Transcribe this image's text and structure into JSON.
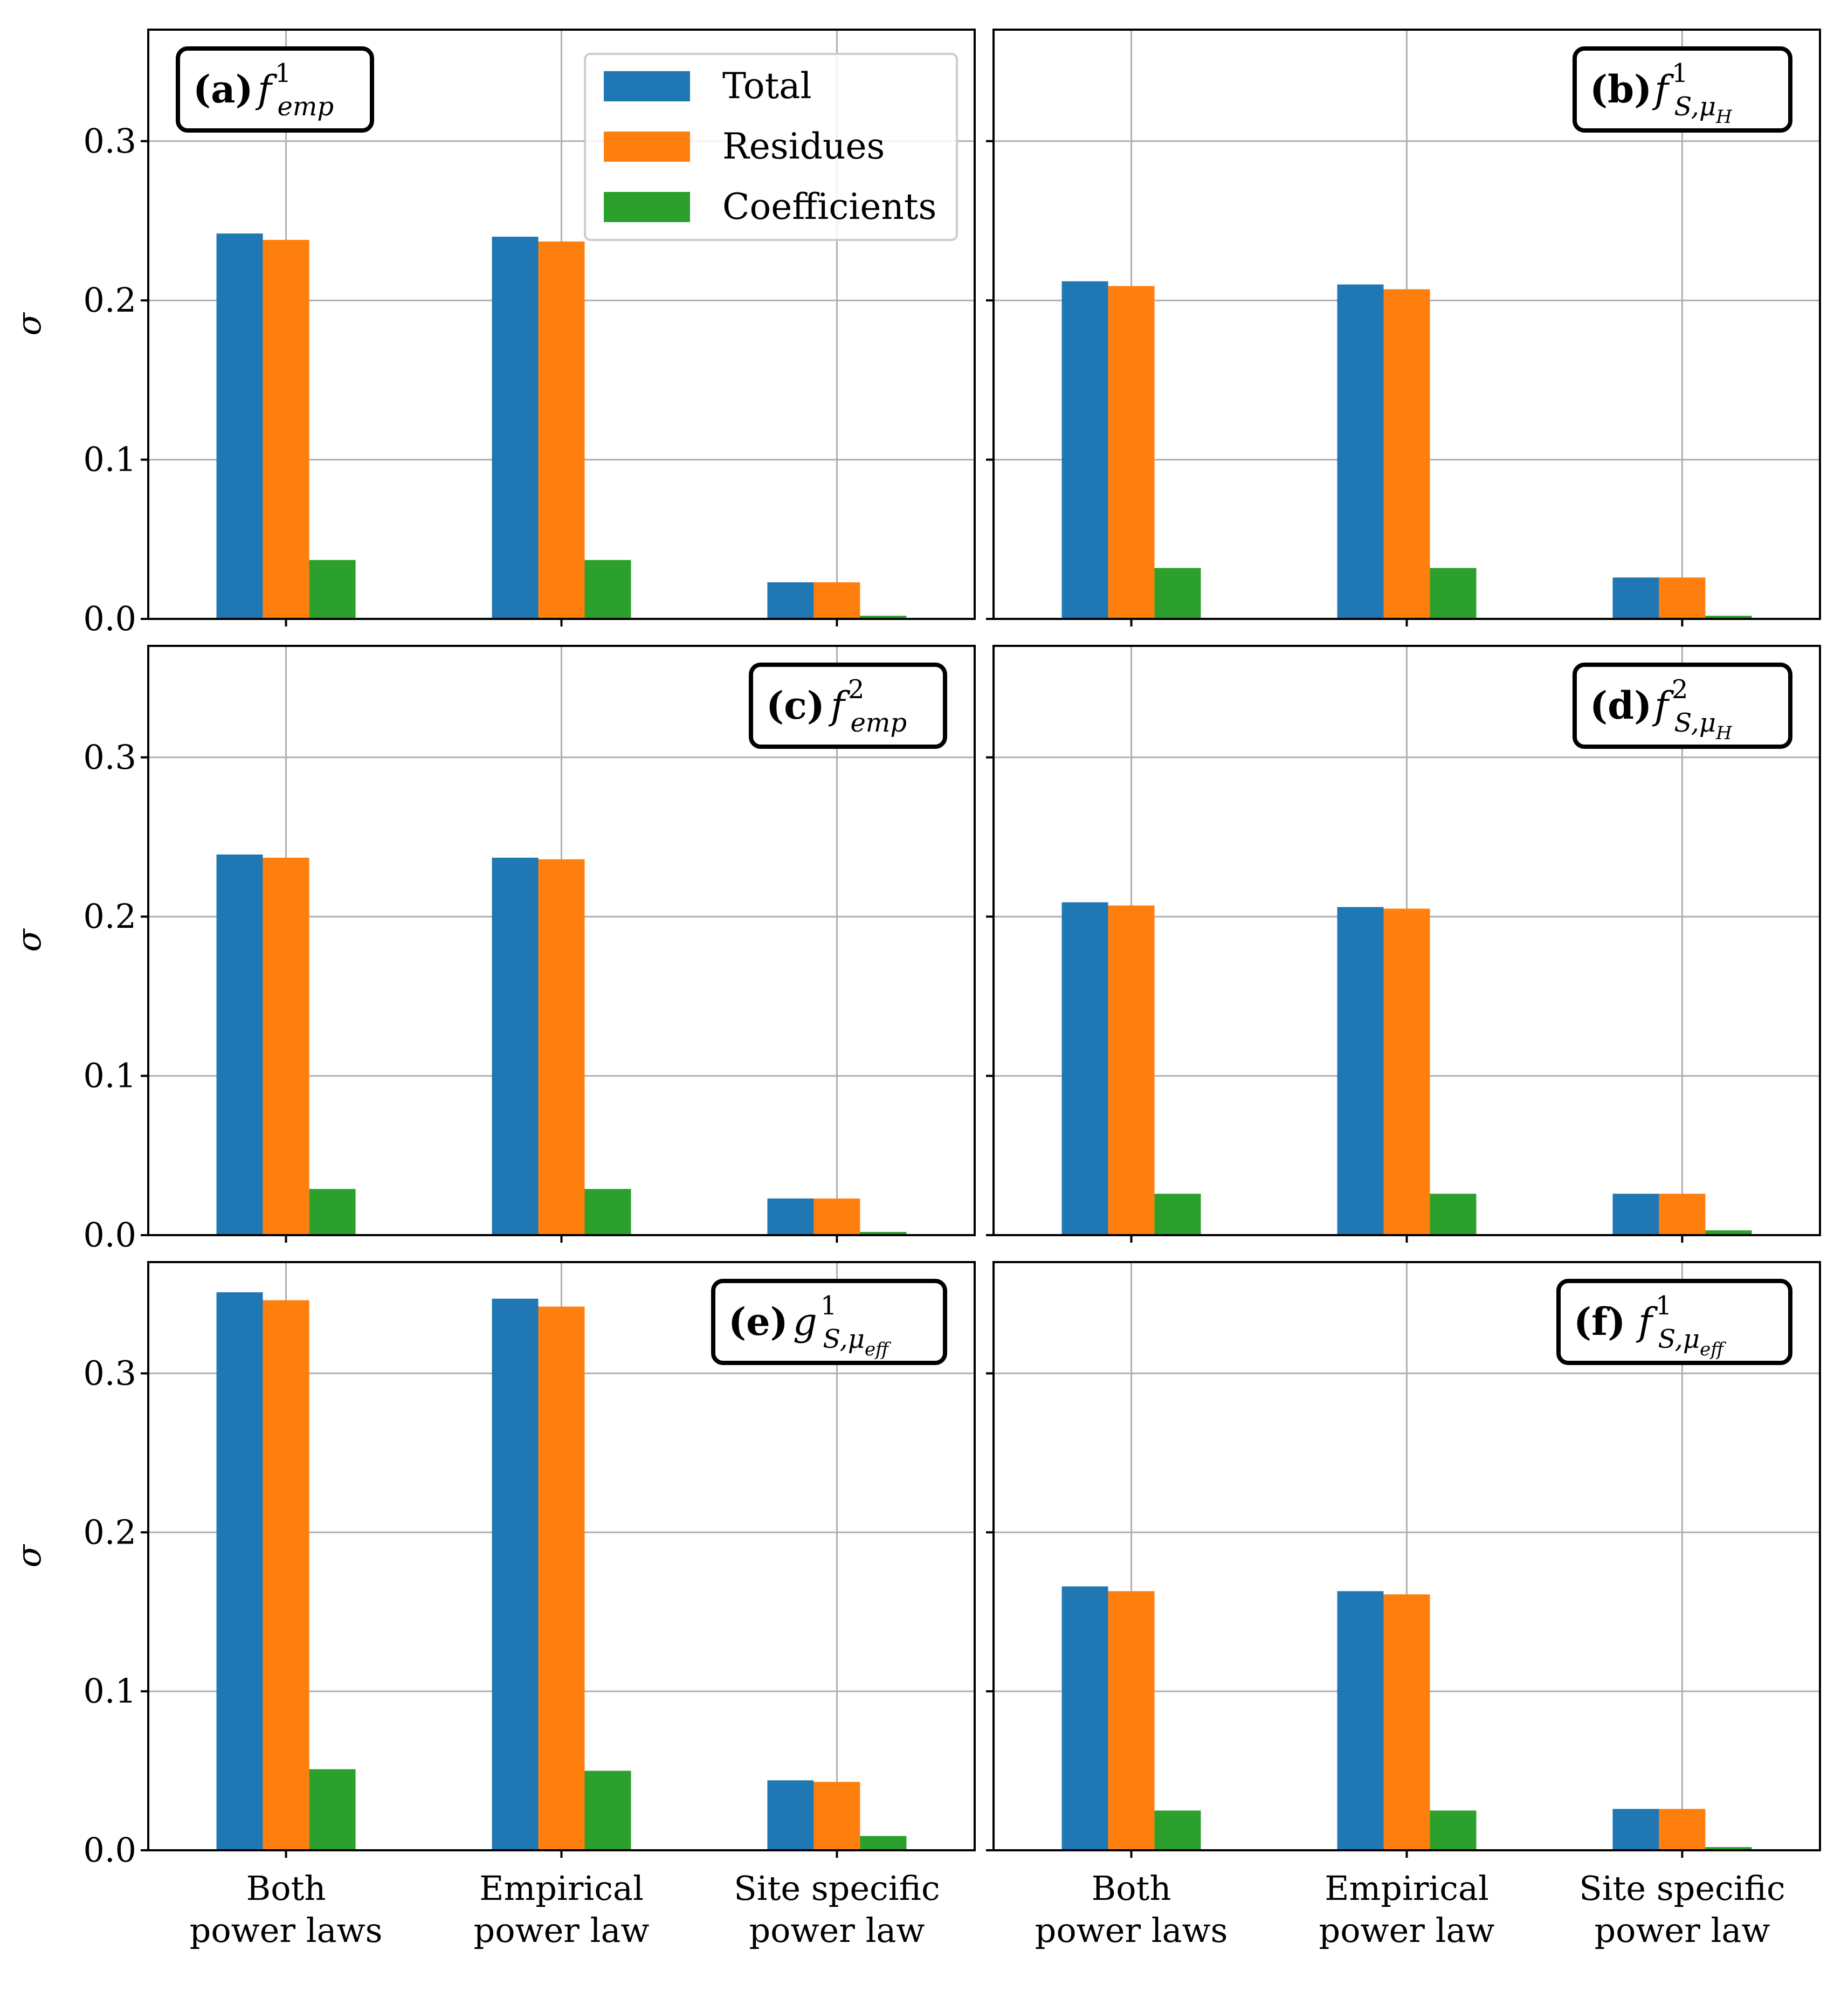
{
  "chart_data": [
    {
      "type": "bar",
      "panel_id": "a",
      "label": "(a)",
      "title": "f^1_emp",
      "title_parts": {
        "base": "f",
        "sup": "1",
        "sub": "emp"
      },
      "categories": [
        "Both power laws",
        "Empirical power law",
        "Site specific power law"
      ],
      "series": [
        {
          "name": "Total",
          "values": [
            0.242,
            0.24,
            0.023
          ]
        },
        {
          "name": "Residues",
          "values": [
            0.238,
            0.237,
            0.023
          ]
        },
        {
          "name": "Coefficients",
          "values": [
            0.037,
            0.037,
            0.002
          ]
        }
      ],
      "ylabel": "σ",
      "ylim": [
        0,
        0.37
      ],
      "yticks": [
        "0.0",
        "0.1",
        "0.2",
        "0.3"
      ],
      "grid": true,
      "legend": "top-right",
      "label_position": "top-left"
    },
    {
      "type": "bar",
      "panel_id": "b",
      "label": "(b)",
      "title": "f^1_S,μH",
      "title_parts": {
        "base": "f",
        "sup": "1",
        "sub": "S,μ",
        "subsub": "H"
      },
      "categories": [
        "Both power laws",
        "Empirical power law",
        "Site specific power law"
      ],
      "series": [
        {
          "name": "Total",
          "values": [
            0.212,
            0.21,
            0.026
          ]
        },
        {
          "name": "Residues",
          "values": [
            0.209,
            0.207,
            0.026
          ]
        },
        {
          "name": "Coefficients",
          "values": [
            0.032,
            0.032,
            0.002
          ]
        }
      ],
      "ylabel": "",
      "ylim": [
        0,
        0.37
      ],
      "yticks": [
        "0.0",
        "0.1",
        "0.2",
        "0.3"
      ],
      "grid": true,
      "label_position": "top-right"
    },
    {
      "type": "bar",
      "panel_id": "c",
      "label": "(c)",
      "title": "f^2_emp",
      "title_parts": {
        "base": "f",
        "sup": "2",
        "sub": "emp"
      },
      "categories": [
        "Both power laws",
        "Empirical power law",
        "Site specific power law"
      ],
      "series": [
        {
          "name": "Total",
          "values": [
            0.239,
            0.237,
            0.023
          ]
        },
        {
          "name": "Residues",
          "values": [
            0.237,
            0.236,
            0.023
          ]
        },
        {
          "name": "Coefficients",
          "values": [
            0.029,
            0.029,
            0.002
          ]
        }
      ],
      "ylabel": "σ",
      "ylim": [
        0,
        0.37
      ],
      "yticks": [
        "0.0",
        "0.1",
        "0.2",
        "0.3"
      ],
      "grid": true,
      "label_position": "top-right"
    },
    {
      "type": "bar",
      "panel_id": "d",
      "label": "(d)",
      "title": "f^2_S,μH",
      "title_parts": {
        "base": "f",
        "sup": "2",
        "sub": "S,μ",
        "subsub": "H"
      },
      "categories": [
        "Both power laws",
        "Empirical power law",
        "Site specific power law"
      ],
      "series": [
        {
          "name": "Total",
          "values": [
            0.209,
            0.206,
            0.026
          ]
        },
        {
          "name": "Residues",
          "values": [
            0.207,
            0.205,
            0.026
          ]
        },
        {
          "name": "Coefficients",
          "values": [
            0.026,
            0.026,
            0.003
          ]
        }
      ],
      "ylabel": "",
      "ylim": [
        0,
        0.37
      ],
      "yticks": [
        "0.0",
        "0.1",
        "0.2",
        "0.3"
      ],
      "grid": true,
      "label_position": "top-right"
    },
    {
      "type": "bar",
      "panel_id": "e",
      "label": "(e)",
      "title": "g^1_S,μeff",
      "title_parts": {
        "base": "g",
        "sup": "1",
        "sub": "S,μ",
        "subsub": "eff"
      },
      "categories": [
        "Both power laws",
        "Empirical power law",
        "Site specific power law"
      ],
      "series": [
        {
          "name": "Total",
          "values": [
            0.351,
            0.347,
            0.044
          ]
        },
        {
          "name": "Residues",
          "values": [
            0.346,
            0.342,
            0.043
          ]
        },
        {
          "name": "Coefficients",
          "values": [
            0.051,
            0.05,
            0.009
          ]
        }
      ],
      "ylabel": "σ",
      "ylim": [
        0,
        0.37
      ],
      "yticks": [
        "0.0",
        "0.1",
        "0.2",
        "0.3"
      ],
      "grid": true,
      "label_position": "top-right"
    },
    {
      "type": "bar",
      "panel_id": "f",
      "label": "(f)",
      "title": "f^1_S,μeff",
      "title_parts": {
        "base": "f",
        "sup": "1",
        "sub": "S,μ",
        "subsub": "eff"
      },
      "categories": [
        "Both power laws",
        "Empirical power law",
        "Site specific power law"
      ],
      "series": [
        {
          "name": "Total",
          "values": [
            0.166,
            0.163,
            0.026
          ]
        },
        {
          "name": "Residues",
          "values": [
            0.163,
            0.161,
            0.026
          ]
        },
        {
          "name": "Coefficients",
          "values": [
            0.025,
            0.025,
            0.002
          ]
        }
      ],
      "ylabel": "",
      "ylim": [
        0,
        0.37
      ],
      "yticks": [
        "0.0",
        "0.1",
        "0.2",
        "0.3"
      ],
      "grid": true,
      "label_position": "top-right"
    }
  ],
  "legend": {
    "entries": [
      "Total",
      "Residues",
      "Coefficients"
    ]
  },
  "x_tick_labels": [
    [
      "Both",
      "power laws"
    ],
    [
      "Empirical",
      "power law"
    ],
    [
      "Site specific",
      "power law"
    ]
  ],
  "colors": {
    "Total": "#1f77b4",
    "Residues": "#ff7f0e",
    "Coefficients": "#2ca02c",
    "grid": "#b0b0b0",
    "axis": "#000000"
  }
}
